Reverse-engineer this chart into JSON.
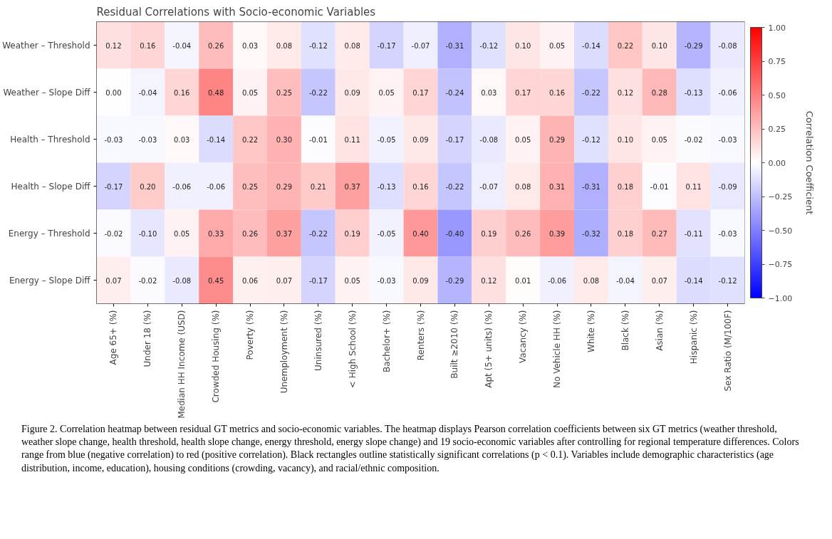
{
  "chart_data": {
    "type": "heatmap",
    "title": "Residual Correlations with Socio-economic Variables",
    "categories": [
      "Age 65+ (%)",
      "Under 18 (%)",
      "Median HH Income (USD)",
      "Crowded Housing (%)",
      "Poverty (%)",
      "Unemployment (%)",
      "Uninsured (%)",
      "< High School (%)",
      "Bachelor+ (%)",
      "Renters (%)",
      "Built ≥2010 (%)",
      "Apt (5+ units) (%)",
      "Vacancy (%)",
      "No Vehicle HH (%)",
      "White (%)",
      "Black (%)",
      "Asian (%)",
      "Hispanic (%)",
      "Sex Ratio (M/100F)"
    ],
    "y_categories": [
      "Weather – Threshold",
      "Weather – Slope Diff",
      "Health – Threshold",
      "Health – Slope Diff",
      "Energy – Threshold",
      "Energy – Slope Diff"
    ],
    "cells": [
      [
        0.12,
        0.16,
        -0.04,
        0.26,
        0.03,
        0.08,
        -0.12,
        0.08,
        -0.17,
        -0.07,
        -0.31,
        -0.12,
        0.1,
        0.05,
        -0.14,
        0.22,
        0.1,
        -0.29,
        -0.08
      ],
      [
        0.0,
        -0.04,
        0.16,
        0.48,
        0.05,
        0.25,
        -0.22,
        0.09,
        0.05,
        0.17,
        -0.24,
        0.03,
        0.17,
        0.16,
        -0.22,
        0.12,
        0.28,
        -0.13,
        -0.06
      ],
      [
        -0.03,
        -0.03,
        0.03,
        -0.14,
        0.22,
        0.3,
        -0.01,
        0.11,
        -0.05,
        0.09,
        -0.17,
        -0.08,
        0.05,
        0.29,
        -0.12,
        0.1,
        0.05,
        -0.02,
        -0.03
      ],
      [
        -0.17,
        0.2,
        -0.06,
        -0.06,
        0.25,
        0.29,
        0.21,
        0.37,
        -0.13,
        0.16,
        -0.22,
        -0.07,
        0.08,
        0.31,
        -0.31,
        0.18,
        -0.01,
        0.11,
        -0.09
      ],
      [
        -0.02,
        -0.1,
        0.05,
        0.33,
        0.26,
        0.37,
        -0.22,
        0.19,
        -0.05,
        0.4,
        -0.4,
        0.19,
        0.26,
        0.39,
        -0.32,
        0.18,
        0.27,
        -0.11,
        -0.03
      ],
      [
        0.07,
        -0.02,
        -0.08,
        0.45,
        0.06,
        0.07,
        -0.17,
        0.05,
        -0.03,
        0.09,
        -0.29,
        0.12,
        0.01,
        -0.06,
        0.08,
        -0.04,
        0.07,
        -0.14,
        -0.12
      ]
    ],
    "cell_labels": [
      [
        "0.12",
        "0.16",
        "-0.04",
        "0.26",
        "0.03",
        "0.08",
        "-0.12",
        "0.08",
        "-0.17",
        "-0.07",
        "-0.31",
        "-0.12",
        "0.10",
        "0.05",
        "-0.14",
        "0.22",
        "0.10",
        "-0.29",
        "-0.08"
      ],
      [
        "0.00",
        "-0.04",
        "0.16",
        "0.48",
        "0.05",
        "0.25",
        "-0.22",
        "0.09",
        "0.05",
        "0.17",
        "-0.24",
        "0.03",
        "0.17",
        "0.16",
        "-0.22",
        "0.12",
        "0.28",
        "-0.13",
        "-0.06"
      ],
      [
        "-0.03",
        "-0.03",
        "0.03",
        "-0.14",
        "0.22",
        "0.30",
        "-0.01",
        "0.11",
        "-0.05",
        "0.09",
        "-0.17",
        "-0.08",
        "0.05",
        "0.29",
        "-0.12",
        "0.10",
        "0.05",
        "-0.02",
        "-0.03"
      ],
      [
        "-0.17",
        "0.20",
        "-0.06",
        "-0.06",
        "0.25",
        "0.29",
        "0.21",
        "0.37",
        "-0.13",
        "0.16",
        "-0.22",
        "-0.07",
        "0.08",
        "0.31",
        "-0.31",
        "0.18",
        "-0.01",
        "0.11",
        "-0.09"
      ],
      [
        "-0.02",
        "-0.10",
        "0.05",
        "0.33",
        "0.26",
        "0.37",
        "-0.22",
        "0.19",
        "-0.05",
        "0.40",
        "-0.40",
        "0.19",
        "0.26",
        "0.39",
        "-0.32",
        "0.18",
        "0.27",
        "-0.11",
        "-0.03"
      ],
      [
        "0.07",
        "-0.02",
        "-0.08",
        "0.45",
        "0.06",
        "0.07",
        "-0.17",
        "0.05",
        "-0.03",
        "0.09",
        "-0.29",
        "0.12",
        "0.01",
        "-0.06",
        "0.08",
        "-0.04",
        "0.07",
        "-0.14",
        "-0.12"
      ]
    ],
    "clabel": "Correlation Coefficient",
    "clim": [
      -1,
      1
    ],
    "cticks": [
      {
        "value": -1,
        "label": "−1.00"
      },
      {
        "value": -0.75,
        "label": "−0.75"
      },
      {
        "value": -0.5,
        "label": "−0.50"
      },
      {
        "value": -0.25,
        "label": "−0.25"
      },
      {
        "value": 0,
        "label": "0.00"
      },
      {
        "value": 0.25,
        "label": "0.25"
      },
      {
        "value": 0.5,
        "label": "0.50"
      },
      {
        "value": 0.75,
        "label": "0.75"
      },
      {
        "value": 1,
        "label": "1.00"
      }
    ],
    "annotations": [
      "Figure 2. Correlation heatmap between residual GT metrics and socio-economic variables. The heatmap displays Pearson correlation coefficients between six GT metrics (weather threshold, weather slope change, health threshold, health slope change, energy threshold, energy slope change) and 19 socio-economic variables after controlling for regional temperature differences. Colors range from blue (negative correlation) to red (positive correlation). Black rectangles outline statistically significant correlations (p < 0.1). Variables include demographic characteristics (age distribution, income, education), housing conditions (crowding, vacancy), and racial/ethnic composition."
    ]
  }
}
